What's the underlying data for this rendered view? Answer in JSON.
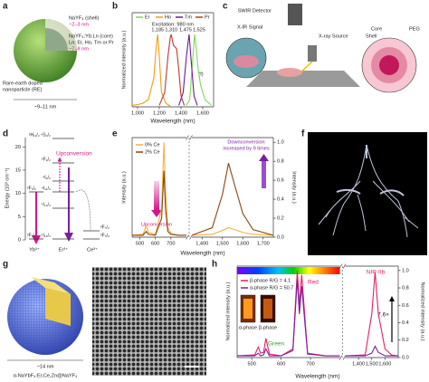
{
  "figure": {
    "a": {
      "label": "a",
      "particle": [
        "Rare-earth doped",
        "nanoparticle (RE)"
      ],
      "shell": "NaYF₄ (shell)",
      "shell_size": "~2–3 nm",
      "core": "NaYF₄:Yb:Ln (core)",
      "dopants": "Ln: Er, Ho, Tm or Pr",
      "core_size": "~7–8 nm",
      "diameter": "~9–11 nm"
    },
    "c": {
      "label": "c",
      "detector": "SWIR Detector",
      "signal": "X-IR Signal",
      "source": "X-ray Source",
      "core": "Core",
      "shell": "Shell",
      "coating": "PEG"
    },
    "d": {
      "label": "d",
      "ylabel": "Energy (10³ cm⁻¹)",
      "ylim": [
        0,
        22
      ],
      "yticks": [
        0,
        5,
        10,
        15,
        20
      ],
      "process": "Upconversion",
      "levels": [
        "²H₁₁/₂ ⁴S₃/₂",
        "⁴F₉/₂",
        "⁴I₉/₂",
        "⁴I₁₁/₂",
        "⁴I₁₃/₂",
        "⁴I₁₅/₂",
        "²F₅/₂",
        "²F₇/₂",
        "²F₇/₂",
        "²F₅/₂"
      ],
      "ions": [
        "Yb³⁺",
        "Er³⁺",
        "Ce³⁺"
      ]
    },
    "f": {
      "label": "f"
    },
    "g": {
      "label": "g",
      "size": "~14 nm",
      "composition": "α-NaYbF₄:Er,Ce,Zn@NaYF₄"
    }
  },
  "chart_data": [
    {
      "panel_label": "b",
      "type": "line",
      "annotation": "Excitation: 980 nm",
      "note": "(f)",
      "xlabel": "Wavelength (nm)",
      "ylabel": "Normalized intensity (a.u.)",
      "xlim": [
        950,
        1700
      ],
      "ylim": [
        0,
        1.3
      ],
      "xticks": [
        {
          "value": 1000,
          "label": "1,000"
        },
        {
          "value": 1200,
          "label": "1,200"
        },
        {
          "value": 1400,
          "label": "1,400"
        },
        {
          "value": 1600,
          "label": "1,600"
        }
      ],
      "legend": "top",
      "peak_labels": [
        {
          "value": 1185,
          "label": "1,185"
        },
        {
          "value": 1310,
          "label": "1,310"
        },
        {
          "value": 1475,
          "label": "1,475"
        },
        {
          "value": 1525,
          "label": "1,525"
        }
      ],
      "series": [
        {
          "name": "Er",
          "color": "#7ed957",
          "x": [
            1450,
            1480,
            1500,
            1520,
            1525,
            1540,
            1560,
            1580,
            1620,
            1680
          ],
          "values": [
            0.02,
            0.1,
            0.5,
            0.9,
            1,
            0.8,
            0.5,
            0.3,
            0.1,
            0.02
          ]
        },
        {
          "name": "Ho",
          "color": "#f39c12",
          "x": [
            950,
            1000,
            1050,
            1100,
            1150,
            1170,
            1185,
            1200,
            1220,
            1260,
            1300
          ],
          "values": [
            0.02,
            0.03,
            0.05,
            0.1,
            0.4,
            0.8,
            1,
            0.7,
            0.2,
            0.05,
            0.01
          ]
        },
        {
          "name": "Tm",
          "color": "#6a1b9a",
          "x": [
            1380,
            1420,
            1450,
            1470,
            1475,
            1490,
            1520,
            1550
          ],
          "values": [
            0.02,
            0.2,
            0.7,
            0.95,
            1,
            0.7,
            0.15,
            0.02
          ]
        },
        {
          "name": "Pr",
          "color": "#c0392b",
          "x": [
            1200,
            1250,
            1280,
            1300,
            1310,
            1330,
            1360,
            1380,
            1400,
            1430
          ],
          "values": [
            0.02,
            0.2,
            0.7,
            0.95,
            1,
            0.85,
            0.8,
            0.5,
            0.15,
            0.02
          ]
        }
      ]
    },
    {
      "panel_label": "e",
      "type": "line",
      "annotation": "Upconversion",
      "annotation2": [
        "Downconversion",
        "increased by 9 times"
      ],
      "xlabel": "Wavelength (nm)",
      "ylabel": "Intensity (a.u.)",
      "y2label": "Intensity (a.u.)",
      "xlim": [
        450,
        1750
      ],
      "x_break": [
        800,
        1350
      ],
      "ylim": [
        0,
        1.05
      ],
      "xticks": [
        500,
        600,
        700,
        {
          "value": 1400,
          "label": "1,400"
        },
        {
          "value": 1500,
          "label": "1,500"
        },
        {
          "value": 1600,
          "label": "1,600"
        },
        {
          "value": 1700,
          "label": "1,700"
        }
      ],
      "y2ticks": [
        {
          "value": 0,
          "label": "0.0"
        },
        0.2,
        0.4,
        0.6,
        0.8,
        {
          "value": 1,
          "label": "1.0"
        }
      ],
      "legend": "upper left",
      "series": [
        {
          "name": "0% Ce",
          "color": "#f5b041",
          "x": [
            450,
            520,
            540,
            555,
            600,
            640,
            655,
            665,
            680,
            700,
            750,
            800,
            1000,
            1350,
            1450,
            1500,
            1530,
            1560,
            1600,
            1650,
            1750
          ],
          "values": [
            0.02,
            0.03,
            0.12,
            0.05,
            0.03,
            0.3,
            1.0,
            0.5,
            0.1,
            0.04,
            0.02,
            0.02,
            null,
            0.02,
            0.03,
            0.07,
            0.1,
            0.08,
            0.05,
            0.03,
            0.02
          ]
        },
        {
          "name": "2% Ce",
          "color": "#8b4513",
          "x": [
            450,
            520,
            540,
            555,
            600,
            640,
            655,
            665,
            680,
            700,
            750,
            800,
            1000,
            1350,
            1450,
            1500,
            1530,
            1560,
            1600,
            1650,
            1750
          ],
          "values": [
            0.02,
            0.02,
            0.06,
            0.03,
            0.02,
            0.2,
            0.7,
            0.3,
            0.06,
            0.03,
            0.02,
            0.02,
            null,
            0.02,
            0.1,
            0.45,
            0.78,
            0.55,
            0.25,
            0.08,
            0.02
          ]
        }
      ]
    },
    {
      "panel_label": "h",
      "type": "line",
      "red": "Red",
      "green": "Green",
      "nir": "NIR-IIb",
      "gain": "7.6×",
      "insets": [
        "α-phase",
        "β-phase"
      ],
      "xlabel": "Wavelength (nm)",
      "ylabel": "Normalized intensity (a.u.)",
      "y2label": "Normalized intensity (a.u.)",
      "xlim": [
        450,
        1700
      ],
      "x_break": [
        800,
        1300
      ],
      "ylim": [
        0,
        1.05
      ],
      "spectrum_bar": true,
      "xticks": [
        500,
        600,
        700,
        {
          "value": 1400,
          "label": "1,400"
        },
        {
          "value": 1500,
          "label": "1,500"
        },
        {
          "value": 1600,
          "label": "1,600"
        }
      ],
      "y2ticks": [
        {
          "value": 0,
          "label": "0.0"
        },
        0.2,
        0.4,
        0.6,
        0.8,
        {
          "value": 1,
          "label": "1.0"
        }
      ],
      "legend": "upper left",
      "series": [
        {
          "name": "β-phase R/G = 4.1",
          "color": "#e91e63",
          "x": [
            450,
            510,
            522,
            530,
            540,
            548,
            560,
            600,
            640,
            655,
            662,
            670,
            690,
            750,
            800,
            1000,
            1300,
            1450,
            1500,
            1525,
            1550,
            1600,
            1650,
            1700
          ],
          "values": [
            0.02,
            0.03,
            0.12,
            0.05,
            0.06,
            0.22,
            0.04,
            0.02,
            0.1,
            1.0,
            0.6,
            0.95,
            0.05,
            0.02,
            0.02,
            null,
            0.02,
            0.03,
            0.5,
            0.98,
            0.5,
            0.1,
            0.03,
            0.02
          ]
        },
        {
          "name": "α-phase R/G = 50.7",
          "color": "#7b1fa2",
          "x": [
            450,
            510,
            522,
            530,
            540,
            548,
            560,
            600,
            640,
            655,
            662,
            670,
            690,
            750,
            800,
            1000,
            1300,
            1450,
            1500,
            1525,
            1550,
            1600,
            1650,
            1700
          ],
          "values": [
            0.02,
            0.02,
            0.05,
            0.02,
            0.03,
            0.1,
            0.02,
            0.02,
            0.08,
            0.9,
            0.5,
            0.82,
            0.04,
            0.02,
            0.02,
            null,
            0.02,
            0.02,
            0.05,
            0.13,
            0.06,
            0.02,
            0.02,
            0.02
          ]
        }
      ]
    }
  ]
}
